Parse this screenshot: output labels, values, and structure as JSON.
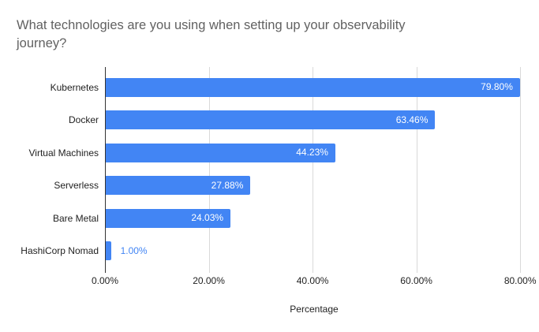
{
  "chart_data": {
    "type": "bar",
    "orientation": "horizontal",
    "title": "What technologies are you using when setting up your observability journey?",
    "categories": [
      "Kubernetes",
      "Docker",
      "Virtual Machines",
      "Serverless",
      "Bare Metal",
      "HashiCorp Nomad"
    ],
    "values": [
      79.8,
      63.46,
      44.23,
      27.88,
      24.03,
      1.0
    ],
    "value_labels": [
      "79.80%",
      "63.46%",
      "44.23%",
      "27.88%",
      "24.03%",
      "1.00%"
    ],
    "xlabel": "Percentage",
    "x_ticks": [
      {
        "value": 0,
        "label": "0.00%"
      },
      {
        "value": 20,
        "label": "20.00%"
      },
      {
        "value": 40,
        "label": "40.00%"
      },
      {
        "value": 60,
        "label": "60.00%"
      },
      {
        "value": 80,
        "label": "80.00%"
      }
    ],
    "xlim": [
      0,
      80.6
    ],
    "grid": true,
    "legend": "none",
    "colors": {
      "bar": "#4285f4",
      "value_label_inside": "#ffffff",
      "value_label_outside": "#4285f4",
      "title": "#616161",
      "axis_line": "#333333",
      "gridline": "#d9d9d9",
      "text": "#1f1f1f",
      "background": "#ffffff"
    }
  }
}
